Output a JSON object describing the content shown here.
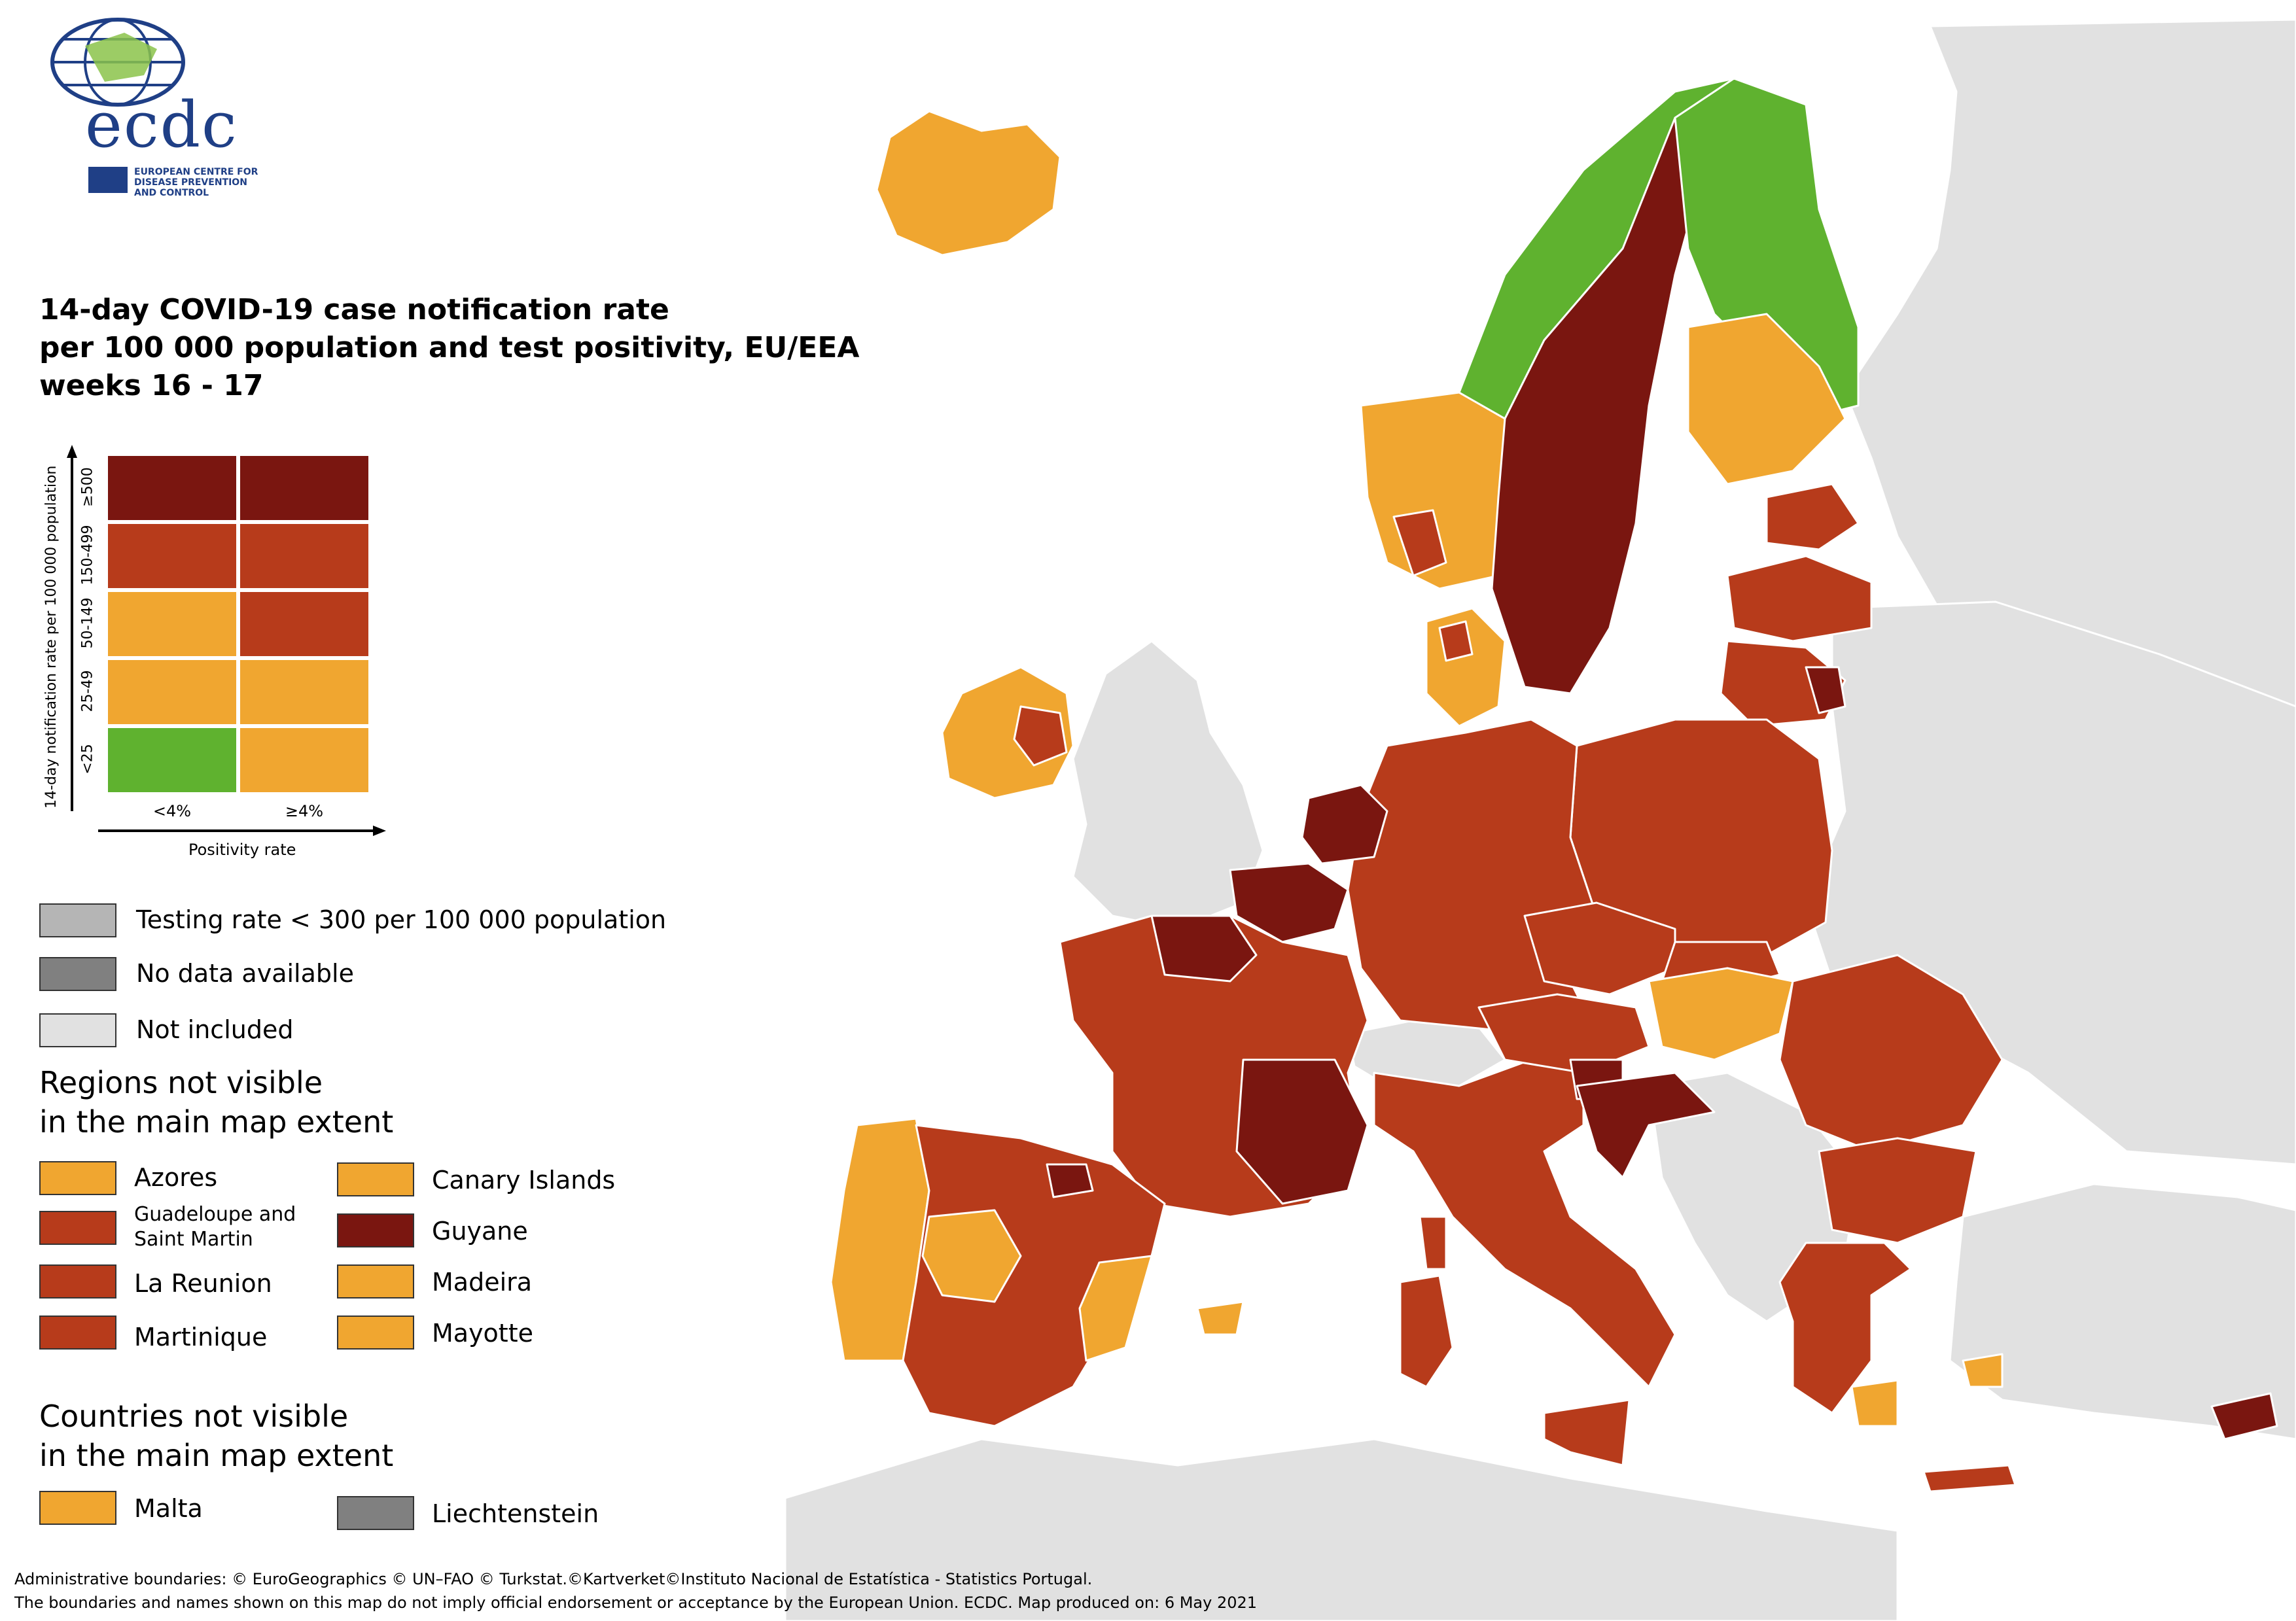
{
  "logo": {
    "wordmark": "ecdc",
    "org_line1": "EUROPEAN CENTRE FOR",
    "org_line2": "DISEASE PREVENTION",
    "org_line3": "AND CONTROL"
  },
  "title": {
    "line1": "14-day COVID-19 case notification rate",
    "line2": "per 100 000 population and test positivity, EU/EEA",
    "line3": "weeks 16 - 17"
  },
  "colors": {
    "green": "#5fb22f",
    "light_orange": "#f0a630",
    "brown_orange": "#b73b1b",
    "dark_red": "#7a1610",
    "testing_low": "#b5b5b5",
    "no_data": "#808080",
    "not_included": "#e1e1e1",
    "sea": "#ffffff"
  },
  "matrix": {
    "y_axis_title": "14-day notification rate per 100 000 population",
    "x_axis_title": "Positivity rate",
    "rows": [
      "≥500",
      "150-499",
      "50-149",
      "25-49",
      "<25"
    ],
    "columns": [
      "<4%",
      "≥4%"
    ],
    "cells": [
      [
        "dark_red",
        "dark_red"
      ],
      [
        "brown_orange",
        "brown_orange"
      ],
      [
        "light_orange",
        "brown_orange"
      ],
      [
        "light_orange",
        "light_orange"
      ],
      [
        "green",
        "light_orange"
      ]
    ]
  },
  "legend_other": [
    {
      "label": "Testing rate < 300 per 100 000 population",
      "color": "testing_low"
    },
    {
      "label": "No data available",
      "color": "no_data"
    },
    {
      "label": "Not included",
      "color": "not_included"
    }
  ],
  "regions_not_visible": {
    "title_line1": "Regions not visible",
    "title_line2": "in the main map extent",
    "items": [
      {
        "label": "Azores",
        "color": "light_orange"
      },
      {
        "label": "Canary Islands",
        "color": "light_orange"
      },
      {
        "label": "Guadeloupe and Saint Martin",
        "color": "brown_orange"
      },
      {
        "label": "Guyane",
        "color": "dark_red"
      },
      {
        "label": "La Reunion",
        "color": "brown_orange"
      },
      {
        "label": "Madeira",
        "color": "light_orange"
      },
      {
        "label": "Martinique",
        "color": "brown_orange"
      },
      {
        "label": "Mayotte",
        "color": "light_orange"
      }
    ]
  },
  "countries_not_visible": {
    "title_line1": "Countries not visible",
    "title_line2": "in the main map extent",
    "items": [
      {
        "label": "Malta",
        "color": "light_orange"
      },
      {
        "label": "Liechtenstein",
        "color": "no_data"
      }
    ]
  },
  "footer": {
    "line1": "Administrative boundaries: © EuroGeographics © UN–FAO © Turkstat.©Kartverket©Instituto Nacional de Estatística - Statistics Portugal.",
    "line2": "The boundaries and names shown on this map do not imply official endorsement or acceptance by the European Union. ECDC. Map produced on: 6 May 2021"
  }
}
